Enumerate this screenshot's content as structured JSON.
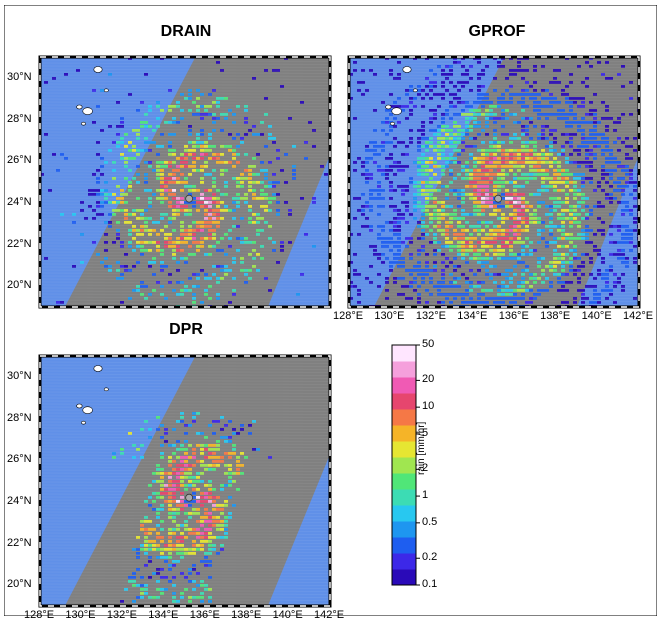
{
  "chart_data": [
    {
      "type": "heatmap",
      "title": "DRAIN",
      "lat_ticks": [
        "30°N",
        "28°N",
        "26°N",
        "24°N",
        "22°N",
        "20°N"
      ],
      "lon_ticks": [],
      "lon_range": [
        128,
        142
      ],
      "lat_range": [
        19,
        31
      ],
      "storm_center": {
        "lon": 135.2,
        "lat": 24.2
      },
      "swath": "partial-rings"
    },
    {
      "type": "heatmap",
      "title": "GPROF",
      "lat_ticks": [],
      "lon_ticks": [
        "128°E",
        "130°E",
        "132°E",
        "134°E",
        "136°E",
        "138°E",
        "140°E",
        "142°E"
      ],
      "lon_range": [
        128,
        142
      ],
      "lat_range": [
        19,
        31
      ],
      "storm_center": {
        "lon": 135.2,
        "lat": 24.2
      },
      "swath": "full-swath"
    },
    {
      "type": "heatmap",
      "title": "DPR",
      "lat_ticks": [
        "30°N",
        "28°N",
        "26°N",
        "24°N",
        "22°N",
        "20°N"
      ],
      "lon_ticks": [
        "128°E",
        "130°E",
        "132°E",
        "134°E",
        "136°E",
        "138°E",
        "140°E",
        "142°E"
      ],
      "lon_range": [
        128,
        142
      ],
      "lat_range": [
        19,
        31
      ],
      "storm_center": {
        "lon": 135.2,
        "lat": 24.2
      },
      "swath": "narrow-swath"
    }
  ],
  "colorbar": {
    "label": "rain [mm/hr]",
    "ticks": [
      "50",
      "20",
      "10",
      "5",
      "2",
      "1",
      "0.5",
      "0.2",
      "0.1"
    ],
    "colors": [
      "#2a0ab8",
      "#3c28e8",
      "#1e5ef0",
      "#1e96f0",
      "#28c8f0",
      "#3cdcb4",
      "#50e678",
      "#a0e650",
      "#e6e632",
      "#f5b428",
      "#f57846",
      "#e6466e",
      "#f05ab4",
      "#f5a0dc",
      "#ffe6ff"
    ]
  },
  "colors": {
    "ocean": "#6090e8",
    "swath": "#808080",
    "land": "#ffffff"
  }
}
